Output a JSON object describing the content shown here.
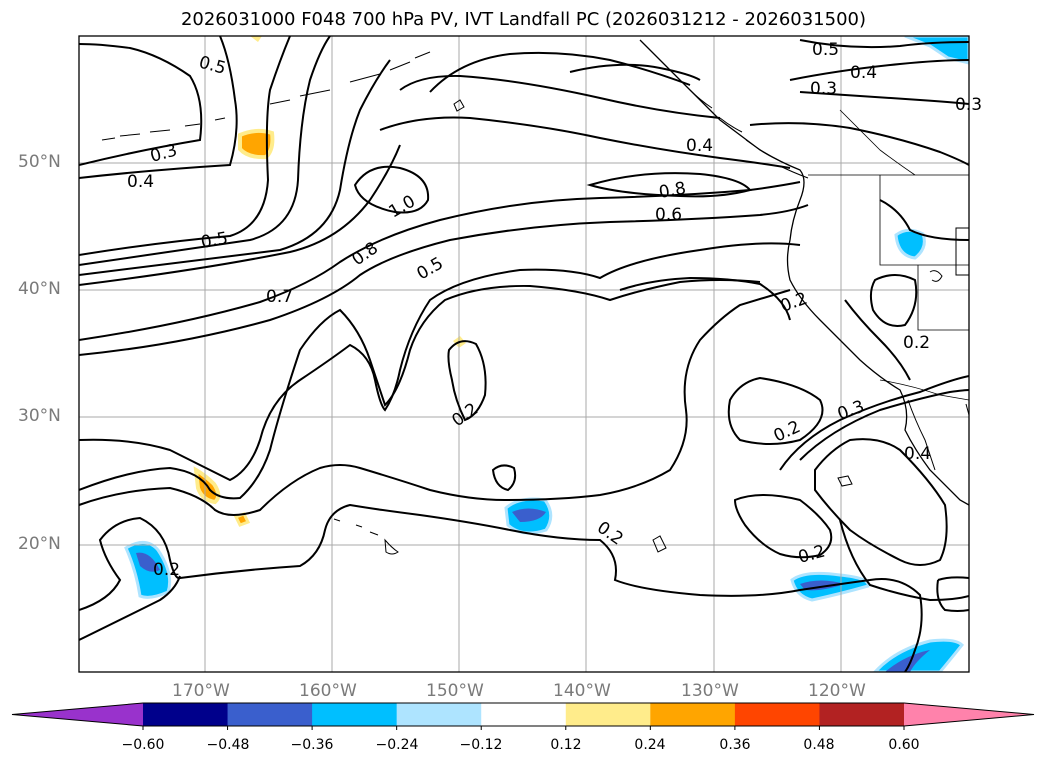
{
  "title": "2026031000 F048 700 hPa PV, IVT Landfall PC (2026031212 - 2026031500)",
  "map": {
    "lat_labels": [
      "50°N",
      "40°N",
      "30°N",
      "20°N"
    ],
    "lon_labels": [
      "170°W",
      "160°W",
      "150°W",
      "140°W",
      "130°W",
      "120°W"
    ],
    "contour_labels": [
      "0.5",
      "0.3",
      "0.4",
      "0.5",
      "0.7",
      "1.0",
      "0.8",
      "0.5",
      "0.6",
      "0.8",
      "0.4",
      "0.3",
      "0.4",
      "0.5",
      "0.3",
      "0.2",
      "0.2",
      "0.2",
      "0.3",
      "0.2",
      "0.2",
      "0.2",
      "0.4",
      "0.2"
    ],
    "colors": {
      "contour": "#000000",
      "coast": "#000000",
      "grid": "#a9a9a9"
    }
  },
  "colorbar": {
    "tick_labels": [
      "−0.60",
      "−0.48",
      "−0.36",
      "−0.24",
      "−0.12",
      "0.12",
      "0.24",
      "0.36",
      "0.48",
      "0.60"
    ],
    "bins": [
      {
        "color": "#9932cc"
      },
      {
        "color": "#00008b"
      },
      {
        "color": "#3a5fcd"
      },
      {
        "color": "#00bfff"
      },
      {
        "color": "#aee4ff"
      },
      {
        "color": "#ffffff"
      },
      {
        "color": "#ffec8b"
      },
      {
        "color": "#ffa500"
      },
      {
        "color": "#ff4500"
      },
      {
        "color": "#b22222"
      },
      {
        "color": "#ff82ab"
      }
    ]
  }
}
